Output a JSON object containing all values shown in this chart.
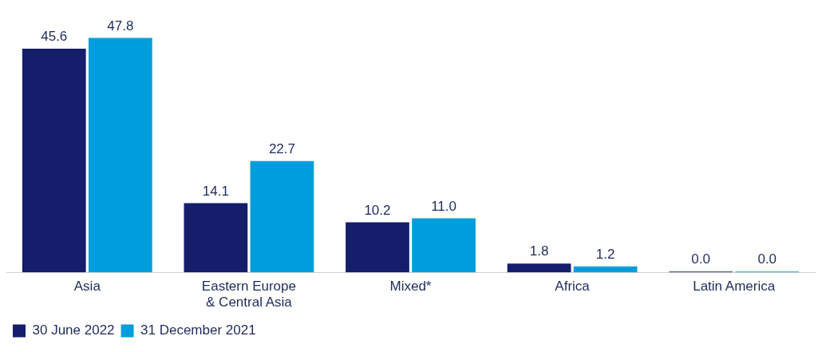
{
  "chart_data": {
    "type": "bar",
    "categories": [
      "Asia",
      "Eastern Europe & Central Asia",
      "Mixed*",
      "Africa",
      "Latin America"
    ],
    "series": [
      {
        "name": "30 June 2022",
        "color": "#141e6b",
        "values": [
          45.6,
          14.1,
          10.2,
          1.8,
          0.0
        ],
        "value_labels": [
          "45.6",
          "14.1",
          "10.2",
          "1.8",
          "0.0"
        ]
      },
      {
        "name": "31 December 2021",
        "color": "#009ddc",
        "values": [
          47.8,
          22.7,
          11.0,
          1.2,
          0.0
        ],
        "value_labels": [
          "47.8",
          "22.7",
          "11.0",
          "1.2",
          "0.0"
        ]
      }
    ],
    "legend": "bottom left",
    "grid": false
  }
}
